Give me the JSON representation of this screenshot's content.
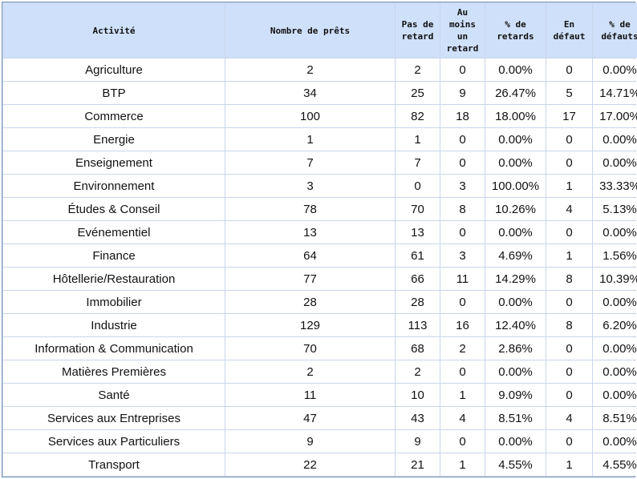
{
  "table": {
    "headers": {
      "activite": "Activité",
      "nombre": "Nombre de prêts",
      "pas_retard": "Pas de retard",
      "au_moins": "Au moins un retard",
      "pct_retards": "% de retards",
      "en_defaut": "En défaut",
      "pct_defauts": "% de défauts"
    },
    "rows": [
      [
        "Agriculture",
        "2",
        "2",
        "0",
        "0.00%",
        "0",
        "0.00%"
      ],
      [
        "BTP",
        "34",
        "25",
        "9",
        "26.47%",
        "5",
        "14.71%"
      ],
      [
        "Commerce",
        "100",
        "82",
        "18",
        "18.00%",
        "17",
        "17.00%"
      ],
      [
        "Energie",
        "1",
        "1",
        "0",
        "0.00%",
        "0",
        "0.00%"
      ],
      [
        "Enseignement",
        "7",
        "7",
        "0",
        "0.00%",
        "0",
        "0.00%"
      ],
      [
        "Environnement",
        "3",
        "0",
        "3",
        "100.00%",
        "1",
        "33.33%"
      ],
      [
        "Études & Conseil",
        "78",
        "70",
        "8",
        "10.26%",
        "4",
        "5.13%"
      ],
      [
        "Evénementiel",
        "13",
        "13",
        "0",
        "0.00%",
        "0",
        "0.00%"
      ],
      [
        "Finance",
        "64",
        "61",
        "3",
        "4.69%",
        "1",
        "1.56%"
      ],
      [
        "Hôtellerie/Restauration",
        "77",
        "66",
        "11",
        "14.29%",
        "8",
        "10.39%"
      ],
      [
        "Immobilier",
        "28",
        "28",
        "0",
        "0.00%",
        "0",
        "0.00%"
      ],
      [
        "Industrie",
        "129",
        "113",
        "16",
        "12.40%",
        "8",
        "6.20%"
      ],
      [
        "Information & Communication",
        "70",
        "68",
        "2",
        "2.86%",
        "0",
        "0.00%"
      ],
      [
        "Matières Premières",
        "2",
        "2",
        "0",
        "0.00%",
        "0",
        "0.00%"
      ],
      [
        "Santé",
        "11",
        "10",
        "1",
        "9.09%",
        "0",
        "0.00%"
      ],
      [
        "Services aux Entreprises",
        "47",
        "43",
        "4",
        "8.51%",
        "4",
        "8.51%"
      ],
      [
        "Services aux Particuliers",
        "9",
        "9",
        "0",
        "0.00%",
        "0",
        "0.00%"
      ],
      [
        "Transport",
        "22",
        "21",
        "1",
        "4.55%",
        "1",
        "4.55%"
      ]
    ]
  }
}
